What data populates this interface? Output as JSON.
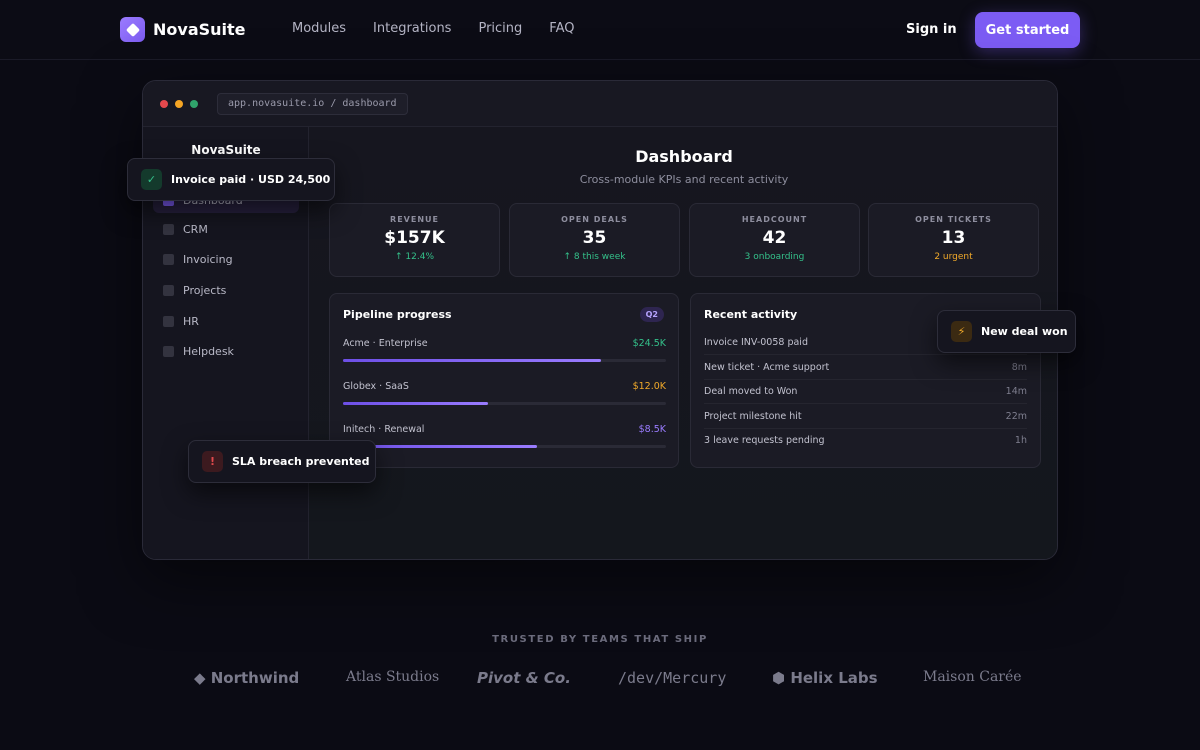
{
  "nav": {
    "brand": "NovaSuite",
    "links": [
      "Modules",
      "Integrations",
      "Pricing",
      "FAQ"
    ],
    "signin": "Sign in",
    "cta": "Get started"
  },
  "app": {
    "url": "app.novasuite.io / dashboard",
    "sidebar": {
      "title": "NovaSuite",
      "items": [
        "Dashboard",
        "CRM",
        "Invoicing",
        "Projects",
        "HR",
        "Helpdesk"
      ],
      "active": "Dashboard"
    },
    "header": {
      "title": "Dashboard",
      "subtitle": "Cross-module KPIs and recent activity"
    },
    "kpis": [
      {
        "label": "REVENUE",
        "value": "$157K",
        "delta": "↑ 12.4%",
        "delta_color": "#34c08a"
      },
      {
        "label": "OPEN DEALS",
        "value": "35",
        "delta": "↑ 8 this week",
        "delta_color": "#34c08a"
      },
      {
        "label": "HEADCOUNT",
        "value": "42",
        "delta": "3 onboarding",
        "delta_color": "#34c08a"
      },
      {
        "label": "OPEN TICKETS",
        "value": "13",
        "delta": "2 urgent",
        "delta_color": "#f0a92a"
      }
    ],
    "pipeline": {
      "title": "Pipeline progress",
      "badge": "Q2",
      "rows": [
        {
          "name": "Acme · Enterprise",
          "value": "$24.5K",
          "progress": 0.8,
          "value_color": "#34c08a"
        },
        {
          "name": "Globex · SaaS",
          "value": "$12.0K",
          "progress": 0.45,
          "value_color": "#f0a92a"
        },
        {
          "name": "Initech · Renewal",
          "value": "$8.5K",
          "progress": 0.6,
          "value_color": "#9a7cff"
        }
      ]
    },
    "activity": {
      "title": "Recent activity",
      "rows": [
        {
          "text": "Invoice INV-0058 paid",
          "time": ""
        },
        {
          "text": "New ticket · Acme support",
          "time": "8m"
        },
        {
          "text": "Deal moved to Won",
          "time": "14m"
        },
        {
          "text": "Project milestone hit",
          "time": "22m"
        },
        {
          "text": "3 leave requests pending",
          "time": "1h"
        }
      ]
    }
  },
  "toasts": {
    "invoice": {
      "icon": "check-icon",
      "text": "Invoice paid · USD 24,500"
    },
    "deal": {
      "icon": "lightning-icon",
      "text": "New deal won"
    },
    "sla": {
      "icon": "alert-icon",
      "text": "SLA breach prevented"
    }
  },
  "trusted": {
    "title": "TRUSTED BY TEAMS THAT SHIP",
    "logos": [
      "◆ Northwind",
      "Atlas Studios",
      "Pivot & Co.",
      "/dev/Mercury",
      "⬢ Helix Labs",
      "Maison Carée"
    ]
  },
  "colors": {
    "accent": "#7c5cf4",
    "success": "#34c08a",
    "warning": "#f0a92a",
    "danger": "#e0494d"
  }
}
